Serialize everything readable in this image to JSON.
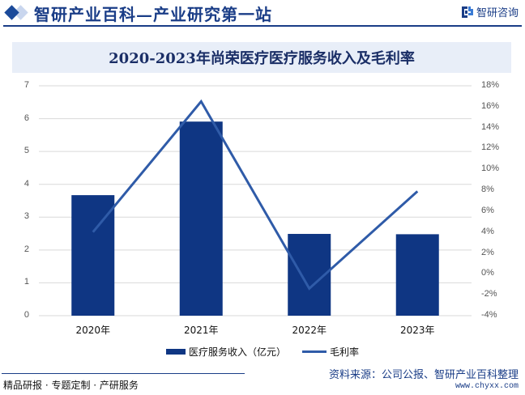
{
  "header": {
    "site_title": "智研产业百科—产业研究第一站",
    "brand_name": "智研咨询"
  },
  "chart_title": "2020-2023年尚荣医疗医疗服务收入及毛利率",
  "axes": {
    "left_ticks": [
      "0",
      "1",
      "2",
      "3",
      "4",
      "5",
      "6",
      "7"
    ],
    "right_ticks": [
      "-4%",
      "-2%",
      "0%",
      "2%",
      "4%",
      "6%",
      "8%",
      "10%",
      "12%",
      "14%",
      "16%",
      "18%"
    ],
    "x_labels": [
      "2020年",
      "2021年",
      "2022年",
      "2023年"
    ]
  },
  "legend": {
    "bar_label": "医疗服务收入（亿元）",
    "line_label": "毛利率"
  },
  "footer": {
    "left": "精品研报 · 专题定制 · 产研服务",
    "source": "资料来源：公司公报、智研产业百科整理",
    "url": "www.chyxx.com"
  },
  "colors": {
    "bar": "#0f3683",
    "line": "#2f5ba8",
    "title_bg": "#e8eef8",
    "brand": "#1a3d87"
  },
  "chart_data": {
    "type": "bar",
    "title": "2020-2023年尚荣医疗医疗服务收入及毛利率",
    "categories": [
      "2020年",
      "2021年",
      "2022年",
      "2023年"
    ],
    "series": [
      {
        "name": "医疗服务收入（亿元）",
        "type": "bar",
        "axis": "left",
        "values": [
          3.67,
          5.91,
          2.49,
          2.48
        ]
      },
      {
        "name": "毛利率",
        "type": "line",
        "axis": "right",
        "unit": "%",
        "values": [
          4.0,
          16.5,
          -1.4,
          7.9
        ]
      }
    ],
    "xlabel": "",
    "ylabel": "",
    "ylim": [
      0,
      7
    ],
    "y2lim": [
      -4,
      18
    ],
    "grid": true,
    "legend_position": "bottom"
  }
}
